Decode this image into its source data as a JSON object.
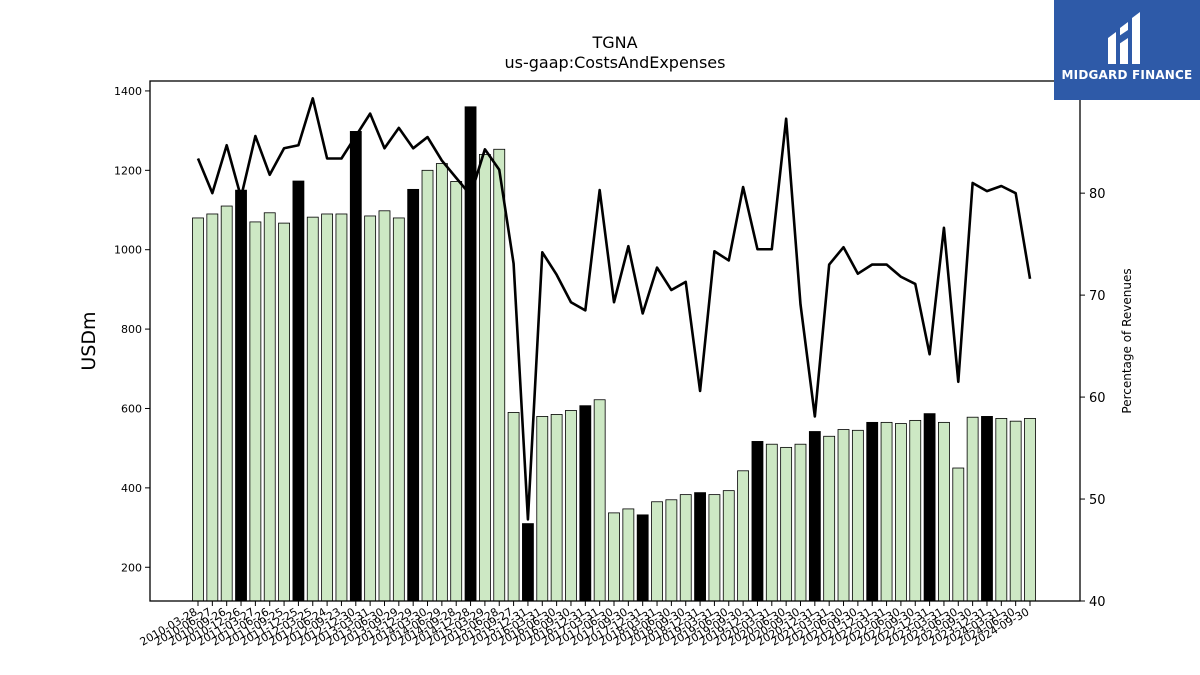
{
  "logo": {
    "text": "MIDGARD FINANCE"
  },
  "chart_data": {
    "type": "bar",
    "title": "TGNA",
    "subtitle": "us-gaap:CostsAndExpenses",
    "ylabel": "USDm",
    "y2label": "Percentage of Revenues",
    "ylim": [
      115,
      1425
    ],
    "y2lim": [
      40,
      91
    ],
    "yticks": [
      200,
      400,
      600,
      800,
      1000,
      1200,
      1400
    ],
    "y2ticks": [
      40,
      50,
      60,
      70,
      80
    ],
    "colors": {
      "quarter_bar": "#cde8c4",
      "annual_bar": "#000000",
      "line": "#000000"
    },
    "categories": [
      "2010-03-28",
      "2010-06-27",
      "2010-09-26",
      "2010-12-26",
      "2011-03-27",
      "2011-06-26",
      "2011-09-25",
      "2011-12-25",
      "2012-03-25",
      "2012-06-24",
      "2012-09-23",
      "2012-12-30",
      "2013-03-31",
      "2013-06-30",
      "2013-09-29",
      "2013-12-29",
      "2014-03-30",
      "2014-06-29",
      "2014-09-28",
      "2014-12-28",
      "2015-03-29",
      "2015-06-28",
      "2015-09-27",
      "2015-12-31",
      "2016-03-31",
      "2016-06-30",
      "2016-09-30",
      "2016-12-31",
      "2017-03-31",
      "2017-06-30",
      "2017-09-30",
      "2017-12-31",
      "2018-03-31",
      "2018-06-30",
      "2018-09-30",
      "2018-12-31",
      "2019-03-31",
      "2019-06-30",
      "2019-09-30",
      "2019-12-31",
      "2020-03-31",
      "2020-06-30",
      "2020-09-30",
      "2020-12-31",
      "2021-03-31",
      "2021-06-30",
      "2021-09-30",
      "2021-12-31",
      "2022-03-31",
      "2022-06-30",
      "2022-09-30",
      "2022-12-31",
      "2023-03-31",
      "2023-06-30",
      "2023-09-30",
      "2023-12-31",
      "2024-03-31",
      "2024-06-30",
      "2024-09-30"
    ],
    "series": [
      {
        "values": [
          1080,
          1090,
          1110,
          1150,
          1070,
          1093,
          1067,
          1173,
          1082,
          1090,
          1090,
          1298,
          1085,
          1098,
          1080,
          1152,
          1200,
          1217,
          1172,
          1360,
          1240,
          1253,
          590,
          310,
          580,
          585,
          595,
          607,
          622,
          337,
          347,
          332,
          365,
          370,
          383,
          388,
          383,
          393,
          443,
          517,
          510,
          502,
          510,
          542,
          530,
          547,
          545,
          565,
          565,
          562,
          570,
          587,
          565,
          450,
          578,
          580,
          575,
          568,
          575
        ],
        "annual": [
          false,
          false,
          false,
          true,
          false,
          false,
          false,
          true,
          false,
          false,
          false,
          true,
          false,
          false,
          false,
          true,
          false,
          false,
          false,
          true,
          false,
          false,
          false,
          true,
          false,
          false,
          false,
          true,
          false,
          false,
          false,
          true,
          false,
          false,
          false,
          true,
          false,
          false,
          false,
          true,
          false,
          false,
          false,
          true,
          false,
          false,
          false,
          true,
          false,
          false,
          false,
          true,
          false,
          false,
          false,
          true,
          false,
          false,
          false
        ]
      },
      {
        "axis": "right",
        "values": [
          83.4,
          80,
          84.7,
          79.6,
          85.6,
          81.8,
          84.4,
          84.7,
          89.3,
          83.4,
          83.4,
          85.6,
          87.8,
          84.4,
          86.4,
          84.4,
          85.5,
          83.2,
          81.5,
          79.8,
          84.3,
          82.3,
          73.1,
          48,
          74.2,
          72,
          69.3,
          68.5,
          80.3,
          69.3,
          74.8,
          68.2,
          72.7,
          70.5,
          71.3,
          60.6,
          74.3,
          73.4,
          80.6,
          74.5,
          74.5,
          87.3,
          69.1,
          58.1,
          73,
          74.7,
          72.1,
          73,
          73,
          71.8,
          71.1,
          64.2,
          76.6,
          61.5,
          81,
          80.2,
          80.7,
          80,
          71.6
        ]
      }
    ]
  }
}
